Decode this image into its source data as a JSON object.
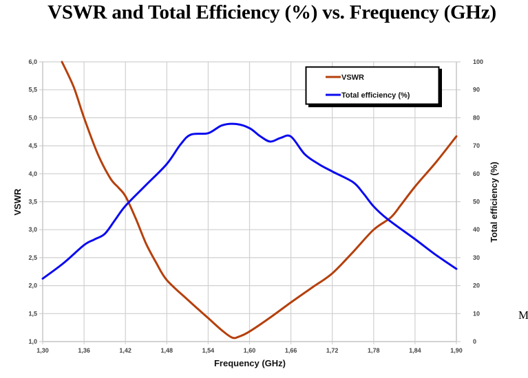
{
  "page": {
    "title": "VSWR and Total Efficiency (%) vs. Frequency (GHz)",
    "side_letter": "M"
  },
  "chart_data": {
    "type": "line",
    "title": "VSWR and Total Efficiency (%) vs. Frequency (GHz)",
    "xlabel": "Frequency (GHz)",
    "ylabel": "VSWR",
    "y2label": "Total efficiency (%)",
    "xlim": [
      1.3,
      1.9
    ],
    "ylim": [
      1.0,
      6.0
    ],
    "y2lim": [
      0,
      100
    ],
    "grid": true,
    "legend_position": "top-right",
    "x_ticks": [
      "1,30",
      "1,36",
      "1,42",
      "1,48",
      "1,54",
      "1,60",
      "1,66",
      "1,72",
      "1,78",
      "1,84",
      "1,90"
    ],
    "x_tick_values": [
      1.3,
      1.36,
      1.42,
      1.48,
      1.54,
      1.6,
      1.66,
      1.72,
      1.78,
      1.84,
      1.9
    ],
    "y_ticks": [
      "1,0",
      "1,5",
      "2,0",
      "2,5",
      "3,0",
      "3,5",
      "4,0",
      "4,5",
      "5,0",
      "5,5",
      "6,0"
    ],
    "y_tick_values": [
      1.0,
      1.5,
      2.0,
      2.5,
      3.0,
      3.5,
      4.0,
      4.5,
      5.0,
      5.5,
      6.0
    ],
    "y2_ticks": [
      "0",
      "10",
      "20",
      "30",
      "40",
      "50",
      "60",
      "70",
      "80",
      "90",
      "100"
    ],
    "y2_tick_values": [
      0,
      10,
      20,
      30,
      40,
      50,
      60,
      70,
      80,
      90,
      100
    ],
    "series": [
      {
        "name": "VSWR",
        "axis": "left",
        "color": "#b5400c",
        "x": [
          1.328,
          1.345,
          1.36,
          1.38,
          1.398,
          1.41,
          1.42,
          1.435,
          1.45,
          1.465,
          1.48,
          1.51,
          1.54,
          1.56,
          1.575,
          1.585,
          1.6,
          1.63,
          1.66,
          1.69,
          1.72,
          1.75,
          1.78,
          1.805,
          1.82,
          1.84,
          1.87,
          1.9
        ],
        "values": [
          6.0,
          5.55,
          5.0,
          4.35,
          3.92,
          3.75,
          3.6,
          3.2,
          2.75,
          2.4,
          2.1,
          1.75,
          1.42,
          1.2,
          1.07,
          1.09,
          1.18,
          1.43,
          1.7,
          1.96,
          2.22,
          2.6,
          3.0,
          3.22,
          3.45,
          3.77,
          4.2,
          4.67
        ]
      },
      {
        "name": "Total efficiency (%)",
        "axis": "right",
        "color": "#0a0af0",
        "x": [
          1.3,
          1.33,
          1.36,
          1.375,
          1.39,
          1.405,
          1.42,
          1.45,
          1.48,
          1.5,
          1.515,
          1.54,
          1.56,
          1.58,
          1.6,
          1.615,
          1.63,
          1.645,
          1.66,
          1.68,
          1.7,
          1.72,
          1.75,
          1.765,
          1.78,
          1.8,
          1.84,
          1.87,
          1.9
        ],
        "values": [
          22.5,
          28,
          34.5,
          36.5,
          38.5,
          43.5,
          48.5,
          56,
          63.5,
          70.5,
          74,
          74.5,
          77.3,
          77.8,
          76.3,
          73.5,
          71.5,
          72.8,
          73.3,
          67,
          63.5,
          60.8,
          57,
          53,
          48.3,
          43.8,
          36.6,
          31,
          26
        ]
      }
    ]
  }
}
